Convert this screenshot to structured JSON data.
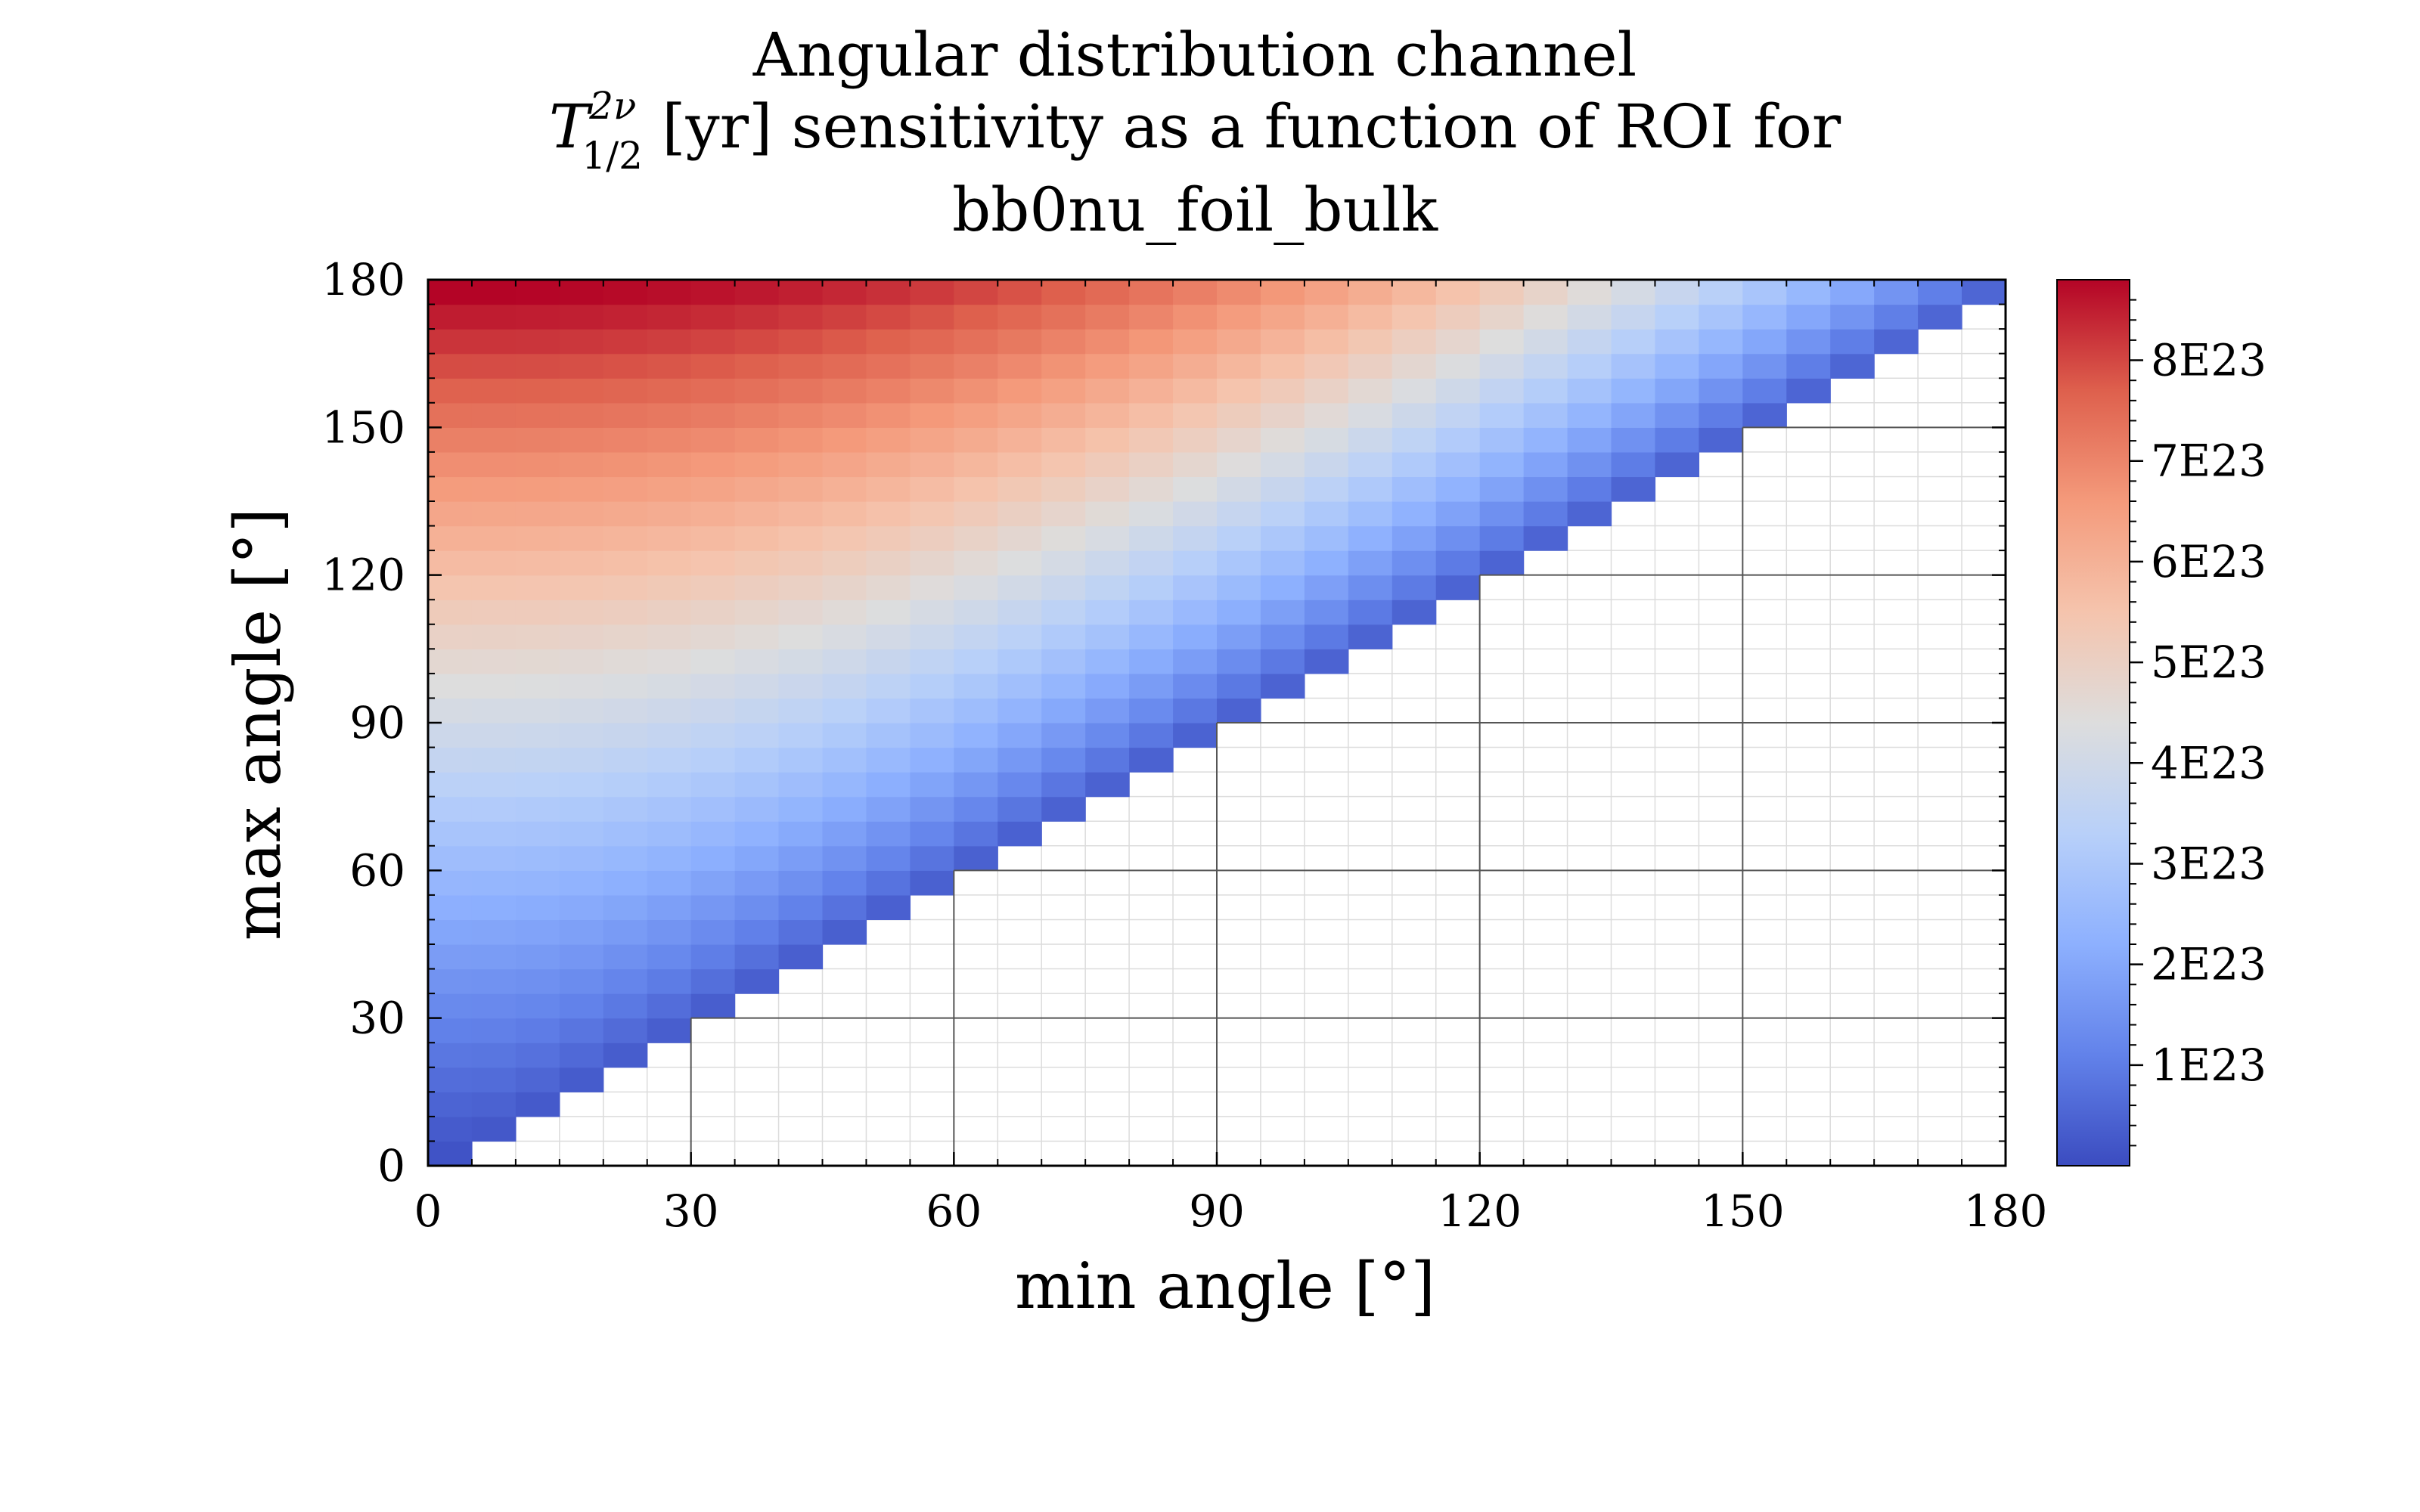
{
  "title": {
    "line1": "Angular distribution channel",
    "line2_symbol_T": "T",
    "line2_sup": "2ν",
    "line2_sub": "1/2",
    "line2_rest": " [yr] sensitivity as a function of ROI for",
    "line3": "bb0nu_foil_bulk"
  },
  "chart_data": {
    "type": "heatmap",
    "title": "Angular distribution channel T_{1/2}^{2ν} [yr] sensitivity as a function of ROI for bb0nu_foil_bulk",
    "xlabel": "min angle [°]",
    "ylabel": "max angle [°]",
    "xlim": [
      0,
      180
    ],
    "ylim": [
      0,
      180
    ],
    "bin_width": 5,
    "xticks": [
      0,
      30,
      60,
      90,
      120,
      150,
      180
    ],
    "yticks": [
      0,
      30,
      60,
      90,
      120,
      150,
      180
    ],
    "colormap": "coolwarm",
    "colorbar": {
      "min": 0.0,
      "max": 8.8e+23,
      "ticks": [
        1e+23,
        2e+23,
        3e+23,
        4e+23,
        5e+23,
        6e+23,
        7e+23,
        8e+23
      ],
      "tick_labels": [
        "1E23",
        "2E23",
        "3E23",
        "4E23",
        "5E23",
        "6E23",
        "7E23",
        "8E23"
      ]
    },
    "grid": true,
    "cells": "defined for min_angle < max_angle; value depends mainly on max angle and decreases with min angle",
    "model": {
      "value_at_max_180_min_0": 8.8e+23,
      "value_at_max_180_min_175": 1e+22,
      "value_at_max_90_min_0": 3.3e+23,
      "value_at_max_30_min_0": 9e+22,
      "value_at_max_5_min_0": 2e+21
    }
  },
  "axes": {
    "x_label": "min angle [°]",
    "y_label": "max angle [°]",
    "x_tick_labels": [
      "0",
      "30",
      "60",
      "90",
      "120",
      "150",
      "180"
    ],
    "y_tick_labels": [
      "0",
      "30",
      "60",
      "90",
      "120",
      "150",
      "180"
    ]
  },
  "colors": {
    "cold": "#3b4cc0",
    "neutral": "#dddddd",
    "warm": "#b40426",
    "grid_major": "#555555",
    "grid_minor": "#dcdcdc"
  }
}
